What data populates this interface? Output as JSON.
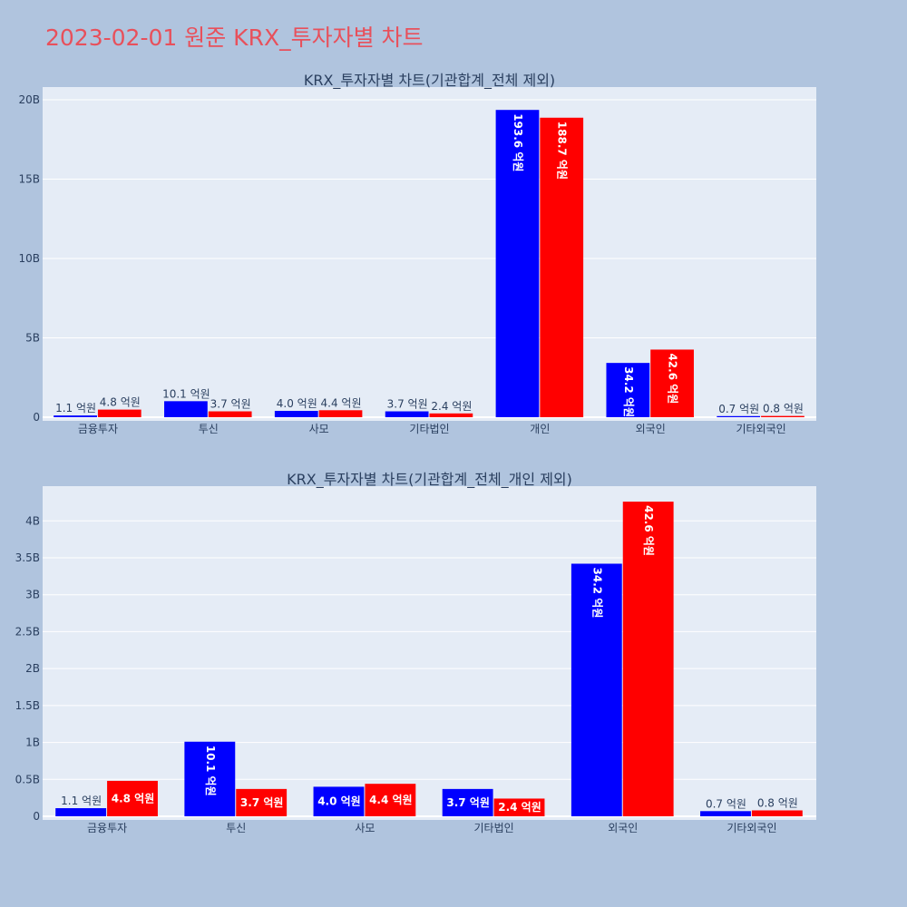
{
  "page": {
    "title": "2023-02-01 원준 KRX_투자자별 차트",
    "background": "#b0c4de",
    "title_color": "#e8505b",
    "plot_background": "#e5ecf6"
  },
  "chart_data": [
    {
      "type": "bar",
      "title": "KRX_투자자별 차트(기관합계_전체 제외)",
      "categories": [
        "금융투자",
        "투신",
        "사모",
        "기타법인",
        "개인",
        "외국인",
        "기타외국인"
      ],
      "series": [
        {
          "color": "#0000ff",
          "values": [
            110000000,
            1010000000,
            400000000,
            370000000,
            19360000000,
            3420000000,
            70000000
          ],
          "labels": [
            "1.1 억원",
            "10.1 억원",
            "4.0 억원",
            "3.7 억원",
            "193.6 억원",
            "34.2 억원",
            "0.7 억원"
          ]
        },
        {
          "color": "#ff0000",
          "values": [
            480000000,
            370000000,
            440000000,
            240000000,
            18870000000,
            4260000000,
            80000000
          ],
          "labels": [
            "4.8 억원",
            "3.7 억원",
            "4.4 억원",
            "2.4 억원",
            "188.7 억원",
            "42.6 억원",
            "0.8 억원"
          ]
        }
      ],
      "ylim": [
        0,
        20800000000
      ],
      "yticks": [
        0,
        5000000000,
        10000000000,
        15000000000,
        20000000000
      ],
      "yticklabels": [
        "0",
        "5B",
        "10B",
        "15B",
        "20B"
      ],
      "grid": true,
      "legend": "none"
    },
    {
      "type": "bar",
      "title": "KRX_투자자별 차트(기관합계_전체_개인 제외)",
      "categories": [
        "금융투자",
        "투신",
        "사모",
        "기타법인",
        "외국인",
        "기타외국인"
      ],
      "series": [
        {
          "color": "#0000ff",
          "values": [
            110000000,
            1010000000,
            400000000,
            370000000,
            3420000000,
            70000000
          ],
          "labels": [
            "1.1 억원",
            "10.1 억원",
            "4.0 억원",
            "3.7 억원",
            "34.2 억원",
            "0.7 억원"
          ]
        },
        {
          "color": "#ff0000",
          "values": [
            480000000,
            370000000,
            440000000,
            240000000,
            4260000000,
            80000000
          ],
          "labels": [
            "4.8 억원",
            "3.7 억원",
            "4.4 억원",
            "2.4 억원",
            "42.6 억원",
            "0.8 억원"
          ]
        }
      ],
      "ylim": [
        0,
        4470000000
      ],
      "yticks": [
        0,
        500000000,
        1000000000,
        1500000000,
        2000000000,
        2500000000,
        3000000000,
        3500000000,
        4000000000
      ],
      "yticklabels": [
        "0",
        "0.5B",
        "1B",
        "1.5B",
        "2B",
        "2.5B",
        "3B",
        "3.5B",
        "4B"
      ],
      "grid": true,
      "legend": "none"
    }
  ]
}
